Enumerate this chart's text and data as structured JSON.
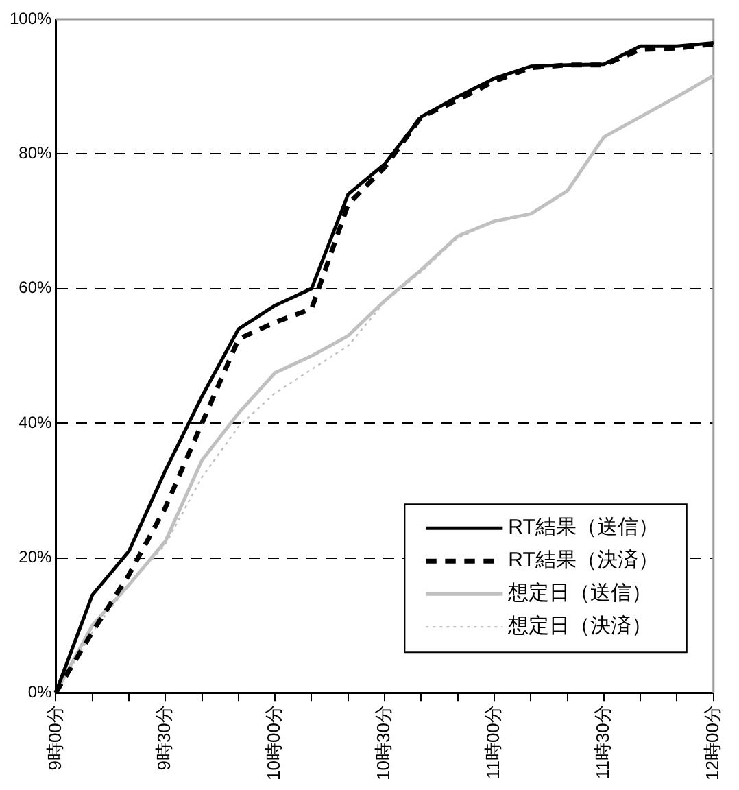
{
  "chart_data": {
    "type": "line",
    "categories": [
      "9時00分",
      null,
      null,
      "9時30分",
      null,
      null,
      "10時00分",
      null,
      null,
      "10時30分",
      null,
      null,
      "11時00分",
      null,
      null,
      "11時30分",
      null,
      null,
      "12時00分"
    ],
    "ylim": [
      0,
      100
    ],
    "yticks": [
      {
        "value": 0,
        "label": "0%"
      },
      {
        "value": 20,
        "label": "20%"
      },
      {
        "value": 40,
        "label": "40%"
      },
      {
        "value": 60,
        "label": "60%"
      },
      {
        "value": 80,
        "label": "80%"
      },
      {
        "value": 100,
        "label": "100%"
      }
    ],
    "grid": "y",
    "legend": "bottom right",
    "marker": "none",
    "series": [
      {
        "name": "RT結果（送信）",
        "color": "#000000",
        "line_style": "solid",
        "values": [
          0,
          14.5,
          21,
          33,
          44,
          54,
          57.5,
          60,
          74,
          78.5,
          85.5,
          88.5,
          91.2,
          93,
          93.2,
          93.3,
          96,
          96,
          96.5
        ]
      },
      {
        "name": "RT結果（決済）",
        "color": "#000000",
        "line_style": "dashed",
        "values": [
          0,
          9,
          17.5,
          27.5,
          40,
          52.5,
          55,
          57,
          72.5,
          78,
          85.5,
          88,
          90.8,
          92.8,
          93.2,
          93.2,
          95.5,
          95.7,
          96.3
        ]
      },
      {
        "name": "想定日（送信）",
        "color": "#c0c0c0",
        "line_style": "solid",
        "values": [
          0,
          10,
          16,
          22.5,
          34.5,
          41.5,
          47.5,
          50,
          53,
          58.2,
          62.8,
          67.8,
          70,
          71.1,
          74.5,
          82.5,
          85.5,
          88.5,
          91.6
        ]
      },
      {
        "name": "想定日（決済）",
        "color": "#c0c0c0",
        "line_style": "dotted",
        "values": [
          0,
          9,
          16,
          22,
          32,
          39.5,
          44.5,
          48,
          51.5,
          58,
          62.5,
          67.5,
          70,
          71.1,
          74.5,
          82.5,
          85.5,
          88.5,
          91.6
        ]
      }
    ]
  }
}
